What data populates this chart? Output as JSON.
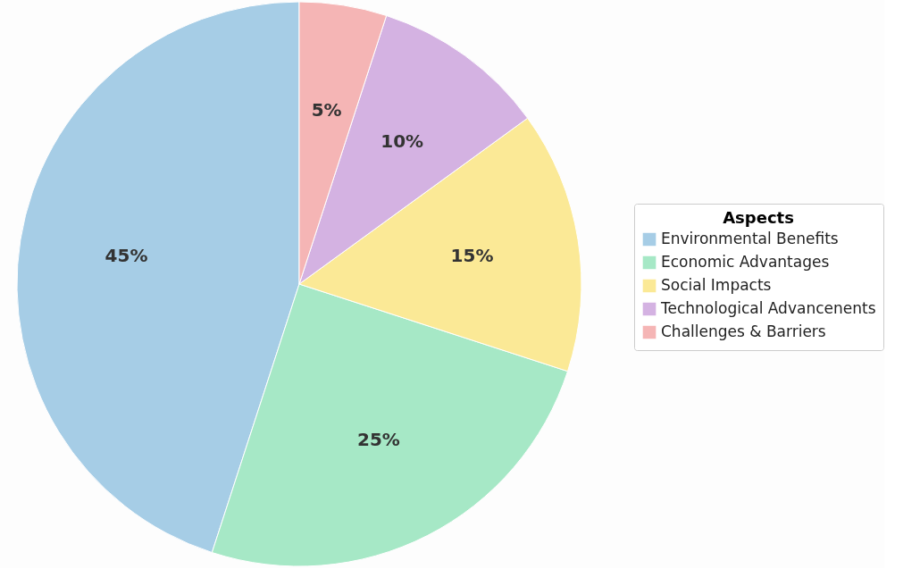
{
  "chart_data": {
    "type": "pie",
    "legend_title": "Aspects",
    "legend": "right",
    "categories": [
      "Environmental Benefits",
      "Economic Advantages",
      "Social Impacts",
      "Technological Advancenents",
      "Challenges & Barriers"
    ],
    "values": [
      45,
      25,
      15,
      10,
      5
    ],
    "colors": [
      "#a6cde6",
      "#a6e8c6",
      "#fbe996",
      "#d4b2e2",
      "#f5b5b5"
    ],
    "value_labels": [
      "45%",
      "25%",
      "15%",
      "10%",
      "5%"
    ]
  }
}
